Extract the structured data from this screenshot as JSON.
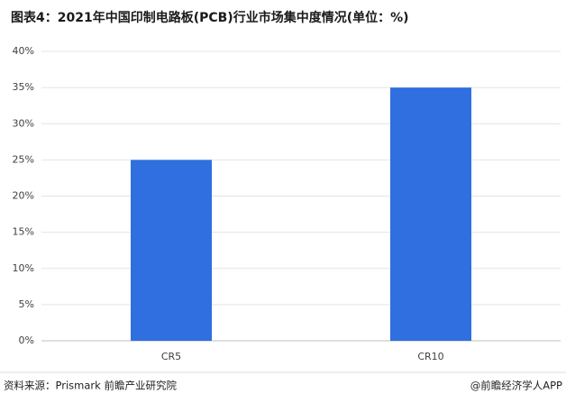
{
  "chart_data": {
    "type": "bar",
    "title": "图表4：2021年中国印制电路板(PCB)行业市场集中度情况(单位：%)",
    "categories": [
      "CR5",
      "CR10"
    ],
    "values": [
      25,
      35
    ],
    "color": "#2f6fe0",
    "ylim": [
      0,
      40
    ],
    "yticks": [
      {
        "value": 0,
        "label": "0%"
      },
      {
        "value": 5,
        "label": "5%"
      },
      {
        "value": 10,
        "label": "10%"
      },
      {
        "value": 15,
        "label": "15%"
      },
      {
        "value": 20,
        "label": "20%"
      },
      {
        "value": 25,
        "label": "25%"
      },
      {
        "value": 30,
        "label": "30%"
      },
      {
        "value": 35,
        "label": "35%"
      },
      {
        "value": 40,
        "label": "40%"
      }
    ],
    "grid": true
  },
  "footer": {
    "source": "资料来源：Prismark 前瞻产业研究院",
    "credit": "@前瞻经济学人APP"
  }
}
